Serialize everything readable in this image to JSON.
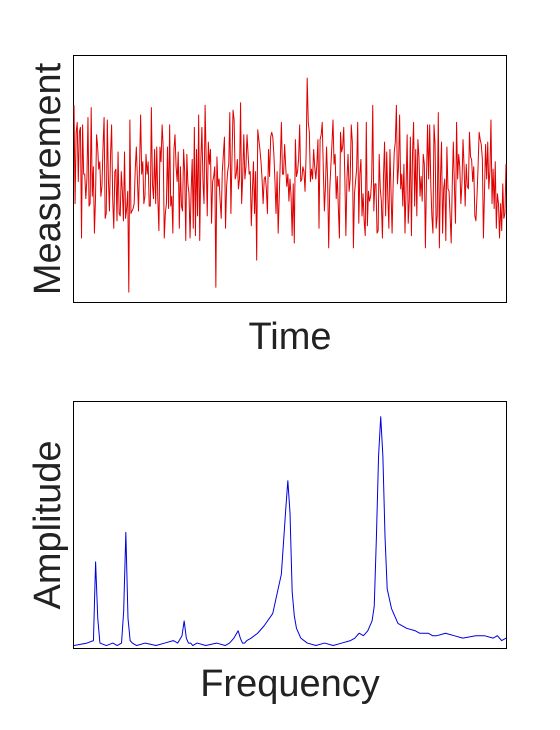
{
  "chart_data": [
    {
      "type": "line",
      "title": "",
      "xlabel": "Time",
      "ylabel": "Measurement",
      "ticks": false,
      "grid": false,
      "color": "#e00000",
      "xlim": [
        0,
        200
      ],
      "ylim": [
        0,
        1
      ],
      "series": [
        {
          "values": [
            0.8,
            0.4,
            0.69,
            0.73,
            0.49,
            0.69,
            0.71,
            0.26,
            0.72,
            0.52,
            0.52,
            0.42,
            0.5,
            0.75,
            0.39,
            0.4,
            0.79,
            0.43,
            0.55,
            0.28,
            0.42,
            0.68,
            0.63,
            0.54,
            0.57,
            0.43,
            0.47,
            0.63,
            0.75,
            0.34,
            0.36,
            0.74,
            0.5,
            0.37,
            0.6,
            0.72,
            0.42,
            0.3,
            0.53,
            0.54,
            0.33,
            0.61,
            0.36,
            0.35,
            0.53,
            0.45,
            0.33,
            0.61,
            0.34,
            0.38,
            0.45,
            0.04,
            0.74,
            0.36,
            0.37,
            0.38,
            0.4,
            0.54,
            0.63,
            0.5,
            0.37,
            0.55,
            0.76,
            0.52,
            0.57,
            0.4,
            0.43,
            0.6,
            0.52,
            0.57,
            0.39,
            0.39,
            0.79,
            0.48,
            0.42,
            0.62,
            0.4,
            0.63,
            0.42,
            0.29,
            0.63,
            0.57,
            0.72,
            0.63,
            0.26,
            0.36,
            0.4,
            0.63,
            0.38,
            0.72,
            0.39,
            0.43,
            0.28,
            0.62,
            0.68,
            0.55,
            0.49,
            0.61,
            0.3,
            0.55,
            0.39,
            0.37,
            0.62,
            0.53,
            0.25,
            0.6,
            0.48,
            0.44,
            0.26,
            0.45,
            0.58,
            0.3,
            0.71,
            0.27,
            0.62,
            0.35,
            0.76,
            0.25,
            0.57,
            0.71,
            0.49,
            0.4,
            0.8,
            0.58,
            0.35,
            0.65,
            0.56,
            0.62,
            0.32,
            0.49,
            0.51,
            0.55,
            0.06,
            0.59,
            0.47,
            0.5,
            0.41,
            0.34,
            0.53,
            0.6,
            0.67,
            0.3,
            0.47,
            0.53,
            0.56,
            0.77,
            0.36,
            0.58,
            0.78,
            0.74,
            0.5,
            0.52,
            0.58,
            0.46,
            0.5,
            0.81,
            0.4,
            0.51,
            0.68,
            0.5,
            0.55,
            0.68,
            0.6,
            0.52,
            0.53,
            0.31,
            0.45,
            0.57,
            0.36,
            0.53,
            0.17,
            0.7,
            0.66,
            0.62,
            0.57,
            0.5,
            0.4,
            0.5,
            0.51,
            0.46,
            0.36,
            0.62,
            0.51,
            0.67,
            0.69,
            0.67,
            0.6,
            0.49,
            0.36,
            0.53,
            0.28,
            0.43,
            0.58,
            0.73,
            0.52,
            0.52,
            0.64,
            0.55,
            0.47,
            0.52,
            0.41,
            0.5,
            0.43,
            0.27,
            0.48,
            0.24,
            0.66,
            0.51,
            0.53,
            0.58,
            0.72,
            0.49,
            0.5,
            0.55,
            0.53,
            0.45,
            0.6,
            0.91,
            0.73,
            0.69,
            0.49,
            0.54,
            0.5,
            0.62,
            0.55,
            0.5,
            0.56,
            0.66,
            0.3,
            0.66,
            0.68,
            0.73,
            0.54,
            0.37,
            0.47,
            0.63,
            0.5,
            0.22,
            0.46,
            0.55,
            0.64,
            0.74,
            0.56,
            0.6,
            0.42,
            0.51,
            0.38,
            0.26,
            0.69,
            0.61,
            0.63,
            0.71,
            0.51,
            0.27,
            0.5,
            0.6,
            0.45,
            0.5,
            0.72,
            0.65,
            0.22,
            0.44,
            0.49,
            0.54,
            0.73,
            0.32,
            0.52,
            0.58,
            0.35,
            0.44,
            0.33,
            0.27,
            0.73,
            0.31,
            0.45,
            0.41,
            0.43,
            0.5,
            0.8,
            0.37,
            0.48,
            0.48,
            0.28,
            0.29,
            0.6,
            0.46,
            0.41,
            0.26,
            0.51,
            0.65,
            0.35,
            0.61,
            0.43,
            0.3,
            0.62,
            0.45,
            0.28,
            0.48,
            0.61,
            0.65,
            0.8,
            0.48,
            0.55,
            0.76,
            0.46,
            0.52,
            0.39,
            0.56,
            0.28,
            0.46,
            0.68,
            0.32,
            0.41,
            0.67,
            0.27,
            0.6,
            0.73,
            0.39,
            0.62,
            0.35,
            0.66,
            0.59,
            0.43,
            0.51,
            0.41,
            0.6,
            0.56,
            0.22,
            0.5,
            0.72,
            0.5,
            0.72,
            0.48,
            0.35,
            0.28,
            0.72,
            0.64,
            0.3,
            0.35,
            0.77,
            0.22,
            0.5,
            0.65,
            0.28,
            0.46,
            0.5,
            0.25,
            0.63,
            0.46,
            0.45,
            0.35,
            0.24,
            0.48,
            0.65,
            0.47,
            0.32,
            0.73,
            0.5,
            0.6,
            0.55,
            0.4,
            0.48,
            0.66,
            0.55,
            0.39,
            0.56,
            0.47,
            0.46,
            0.69,
            0.59,
            0.58,
            0.49,
            0.55,
            0.35,
            0.33,
            0.43,
            0.55,
            0.69,
            0.66,
            0.64,
            0.58,
            0.26,
            0.45,
            0.64,
            0.5,
            0.65,
            0.46,
            0.53,
            0.74,
            0.4,
            0.54,
            0.38,
            0.57,
            0.3,
            0.44,
            0.4,
            0.26,
            0.4,
            0.29,
            0.48,
            0.34,
            0.36,
            0.56
          ]
        }
      ]
    },
    {
      "type": "line",
      "title": "",
      "xlabel": "Frequency",
      "ylabel": "Amplitude",
      "ticks": false,
      "grid": false,
      "color": "#0000e0",
      "xlim": [
        0,
        200
      ],
      "ylim": [
        0,
        1
      ],
      "series": [
        {
          "x": [
            0,
            6,
            9,
            10,
            11,
            12,
            15,
            18,
            20,
            22,
            23,
            24,
            25,
            26,
            27,
            29,
            33,
            38,
            42,
            46,
            48,
            50,
            51,
            52,
            53,
            54,
            55,
            57,
            61,
            66,
            70,
            72,
            74,
            76,
            77,
            78,
            79,
            80,
            82,
            85,
            88,
            92,
            96,
            98,
            99,
            100,
            101,
            102,
            103,
            105,
            108,
            112,
            116,
            120,
            124,
            128,
            130,
            132,
            134,
            136,
            138,
            139,
            140,
            141,
            142,
            143,
            144,
            145,
            147,
            150,
            154,
            158,
            160,
            162,
            164,
            166,
            168,
            172,
            176,
            180,
            186,
            190,
            194,
            196,
            198,
            200
          ],
          "y": [
            0.01,
            0.02,
            0.03,
            0.35,
            0.12,
            0.02,
            0.01,
            0.02,
            0.01,
            0.02,
            0.15,
            0.47,
            0.12,
            0.03,
            0.02,
            0.01,
            0.02,
            0.01,
            0.02,
            0.03,
            0.02,
            0.05,
            0.11,
            0.04,
            0.02,
            0.02,
            0.01,
            0.02,
            0.01,
            0.02,
            0.01,
            0.02,
            0.04,
            0.07,
            0.04,
            0.02,
            0.02,
            0.03,
            0.04,
            0.06,
            0.09,
            0.14,
            0.3,
            0.56,
            0.68,
            0.55,
            0.23,
            0.13,
            0.08,
            0.04,
            0.02,
            0.01,
            0.02,
            0.01,
            0.02,
            0.03,
            0.04,
            0.06,
            0.05,
            0.07,
            0.11,
            0.17,
            0.45,
            0.78,
            0.94,
            0.78,
            0.45,
            0.24,
            0.16,
            0.1,
            0.08,
            0.07,
            0.06,
            0.06,
            0.06,
            0.05,
            0.05,
            0.06,
            0.05,
            0.04,
            0.05,
            0.05,
            0.04,
            0.05,
            0.03,
            0.04
          ]
        }
      ]
    }
  ]
}
